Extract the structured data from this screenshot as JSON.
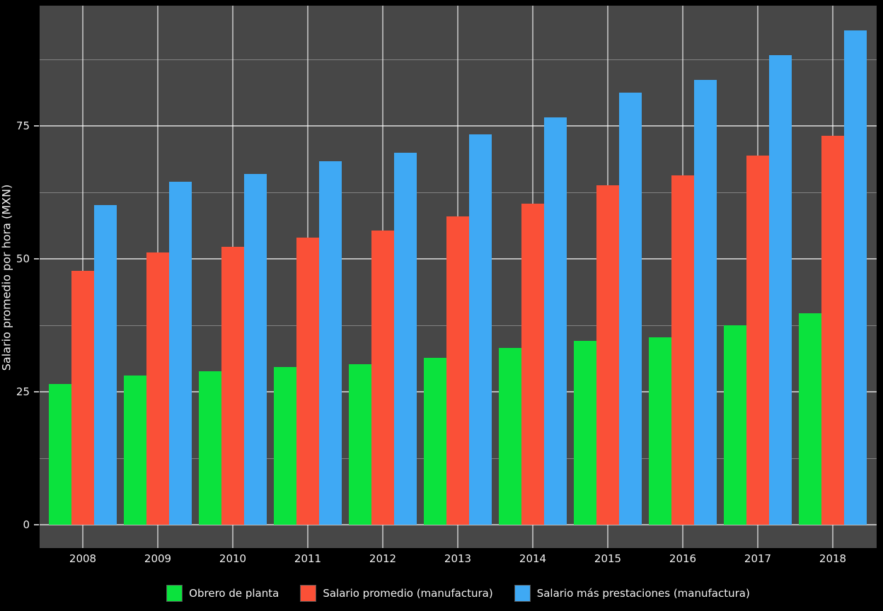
{
  "chart_data": {
    "type": "bar",
    "title": "",
    "xlabel": "",
    "ylabel": "Salario promedio por hora (MXN)",
    "categories": [
      "2008",
      "2009",
      "2010",
      "2011",
      "2012",
      "2013",
      "2014",
      "2015",
      "2016",
      "2017",
      "2018"
    ],
    "series": [
      {
        "name": "Obrero de planta",
        "color": "#0BE23D",
        "values": [
          26.4,
          28.1,
          28.9,
          29.6,
          30.2,
          31.4,
          33.2,
          34.6,
          35.2,
          37.5,
          39.7
        ]
      },
      {
        "name": "Salario promedio (manufactura)",
        "color": "#FA5037",
        "values": [
          47.8,
          51.2,
          52.3,
          54.0,
          55.3,
          58.0,
          60.4,
          63.8,
          65.7,
          69.4,
          73.2
        ]
      },
      {
        "name": "Salario más prestaciones (manufactura)",
        "color": "#3FA9F4",
        "values": [
          60.1,
          64.5,
          66.0,
          68.3,
          70.0,
          73.4,
          76.6,
          81.2,
          83.7,
          88.3,
          93.0
        ]
      }
    ],
    "ylim": [
      0,
      97.6
    ],
    "yticks": [
      0,
      25,
      50,
      75
    ],
    "yticks_minor": [
      12.5,
      37.5,
      62.5,
      87.5
    ],
    "grid": true,
    "legend_position": "bottom"
  },
  "colors": {
    "background": "#000000",
    "panel_background": "#474747",
    "grid_major": "rgba(255,255,255,0.62)",
    "grid_minor": "rgba(255,255,255,0.32)",
    "text": "#F0F0F0"
  }
}
